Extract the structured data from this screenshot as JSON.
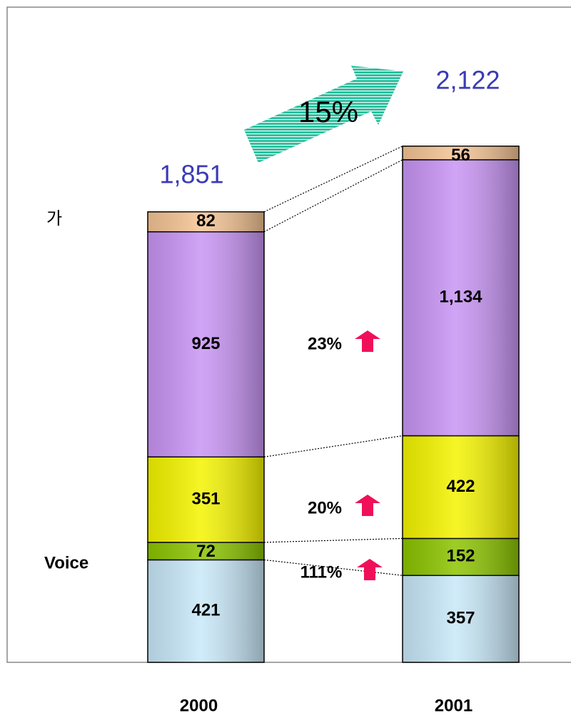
{
  "chart_data": {
    "type": "stacked_bar",
    "categories": [
      "2000",
      "2001"
    ],
    "series": [
      {
        "color": "#c8e8f8",
        "values": [
          421,
          357
        ]
      },
      {
        "name": "Voice",
        "color": "#8cc400",
        "values": [
          72,
          152
        ]
      },
      {
        "color": "#f4f400",
        "values": [
          351,
          422
        ]
      },
      {
        "color": "#c894f4",
        "values": [
          925,
          1134
        ],
        "value_labels": [
          "925",
          "1,134"
        ]
      },
      {
        "name": "가",
        "color": "#f4c494",
        "values": [
          82,
          56
        ]
      }
    ],
    "totals": [
      1851,
      2122
    ],
    "total_labels": [
      "1,851",
      "2,122"
    ],
    "annotations": [
      "15%",
      "23%",
      "20%",
      "111%"
    ]
  }
}
